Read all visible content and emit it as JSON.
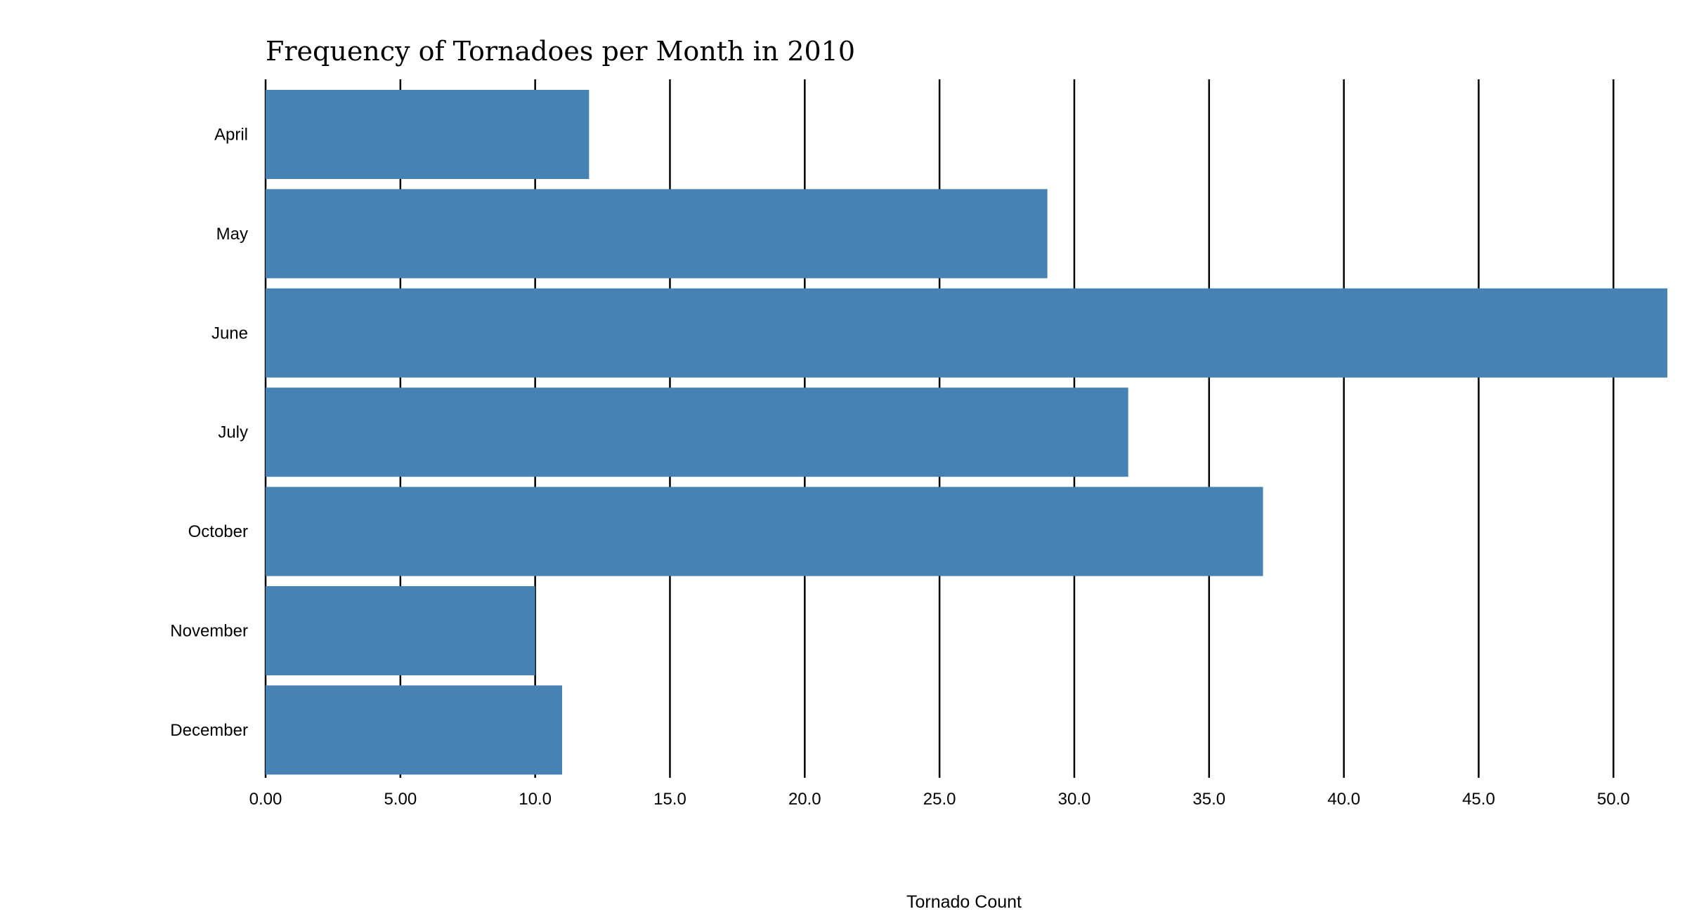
{
  "chart_data": {
    "type": "bar",
    "orientation": "horizontal",
    "title": "Frequency of Tornadoes per Month in 2010",
    "xlabel": "Tornado Count",
    "ylabel": "",
    "categories": [
      "April",
      "May",
      "June",
      "July",
      "October",
      "November",
      "December"
    ],
    "values": [
      12,
      29,
      52,
      32,
      37,
      10,
      11
    ],
    "xlim": [
      0,
      52
    ],
    "x_ticks": [
      0,
      5,
      10,
      15,
      20,
      25,
      30,
      35,
      40,
      45,
      50
    ],
    "x_tick_labels": [
      "0.00",
      "5.00",
      "10.0",
      "15.0",
      "20.0",
      "25.0",
      "30.0",
      "35.0",
      "40.0",
      "45.0",
      "50.0"
    ],
    "grid": true,
    "legend": "none",
    "colors": {
      "bar": "#4682b4",
      "grid": "#000000",
      "text": "#000000"
    }
  }
}
